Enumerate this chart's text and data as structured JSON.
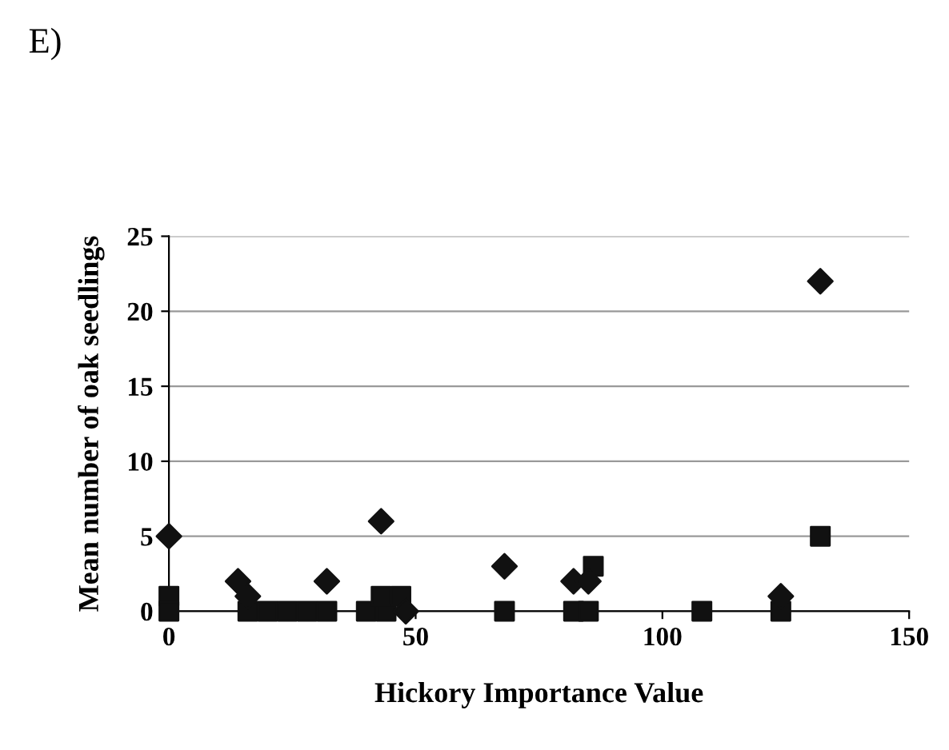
{
  "chart_data": {
    "type": "scatter",
    "title": "E)",
    "xlabel": "Hickory Importance Value",
    "ylabel": "Mean number of oak seedlings",
    "xlim": [
      0,
      150
    ],
    "ylim": [
      0,
      25
    ],
    "xticks": [
      0,
      50,
      100,
      150
    ],
    "yticks": [
      0,
      5,
      10,
      15,
      20,
      25
    ],
    "grid": "y",
    "legend": false,
    "series": [
      {
        "color": "#111111",
        "marker": "square",
        "x": [
          0,
          0,
          16,
          20,
          24,
          28,
          32,
          40,
          44,
          43,
          47,
          68,
          82,
          85,
          86,
          108,
          124,
          132
        ],
        "values": [
          1,
          0,
          0,
          0,
          0,
          0,
          0,
          0,
          0,
          1,
          1,
          0,
          0,
          0,
          3,
          0,
          0,
          5
        ]
      },
      {
        "color": "#111111",
        "marker": "diamond",
        "x": [
          0,
          14,
          16,
          32,
          43,
          48,
          68,
          82,
          85,
          124,
          132
        ],
        "values": [
          5,
          2,
          1,
          2,
          6,
          0,
          3,
          2,
          2,
          1,
          22
        ]
      }
    ]
  }
}
